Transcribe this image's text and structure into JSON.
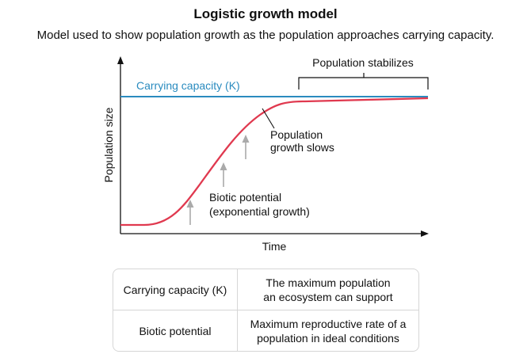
{
  "title": "Logistic growth model",
  "subtitle": "Model used to show population growth as the population approaches carrying capacity.",
  "chart_data": {
    "type": "line",
    "xlabel": "Time",
    "ylabel": "Population size",
    "carrying_capacity_label": "Carrying capacity (K)",
    "annotations": {
      "stabilizes": "Population stabilizes",
      "slows_line1": "Population",
      "slows_line2": "growth slows",
      "biotic_line1": "Biotic potential",
      "biotic_line2": "(exponential growth)"
    },
    "colors": {
      "curve": "#e0394f",
      "carrying_capacity": "#2a8bbf",
      "arrows": "#aaaaaa",
      "axes": "#111111"
    }
  },
  "legend": [
    {
      "term": "Carrying capacity (K)",
      "definition_line1": "The maximum population",
      "definition_line2": "an ecosystem can support"
    },
    {
      "term": "Biotic potential",
      "definition_line1": "Maximum reproductive rate of a",
      "definition_line2": "population in ideal conditions"
    }
  ]
}
